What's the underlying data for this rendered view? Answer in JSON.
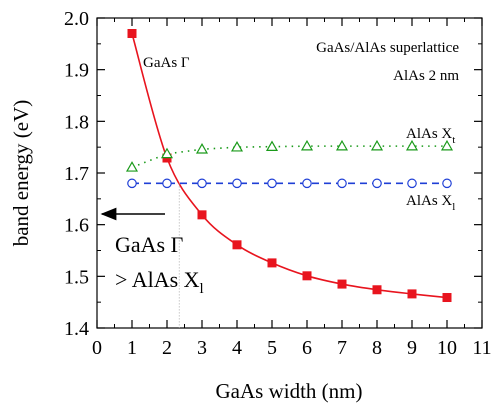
{
  "chart_data": {
    "type": "line",
    "xlabel": "GaAs width (nm)",
    "ylabel": "band energy (eV)",
    "xlim": [
      0,
      11
    ],
    "ylim": [
      1.4,
      2.0
    ],
    "x_ticks": [
      "0",
      "1",
      "2",
      "3",
      "4",
      "5",
      "6",
      "7",
      "8",
      "9",
      "10",
      "11"
    ],
    "y_ticks": [
      "1.4",
      "1.5",
      "1.6",
      "1.7",
      "1.8",
      "1.9",
      "2.0"
    ],
    "grid": false,
    "series": [
      {
        "name": "GaAs Γ",
        "label_main": "GaAs Γ",
        "color": "#e8141e",
        "marker": "square-filled",
        "line": "solid",
        "x": [
          1,
          2,
          3,
          4,
          5,
          6,
          7,
          8,
          9,
          10
        ],
        "y": [
          1.97,
          1.729,
          1.619,
          1.561,
          1.526,
          1.501,
          1.485,
          1.474,
          1.466,
          1.459
        ]
      },
      {
        "name": "AlAs Xt",
        "label_main": "AlAs X",
        "label_sub": "t",
        "color": "#1a9a1a",
        "marker": "triangle-open",
        "line": "dotted",
        "x": [
          1,
          2,
          3,
          4,
          5,
          6,
          7,
          8,
          9,
          10
        ],
        "y": [
          1.711,
          1.737,
          1.746,
          1.75,
          1.751,
          1.752,
          1.752,
          1.752,
          1.752,
          1.752
        ]
      },
      {
        "name": "AlAs Xl",
        "label_main": "AlAs X",
        "label_sub": "l",
        "color": "#1f3fd6",
        "marker": "circle-open",
        "line": "dashed",
        "x": [
          1,
          2,
          3,
          4,
          5,
          6,
          7,
          8,
          9,
          10
        ],
        "y": [
          1.68,
          1.68,
          1.68,
          1.68,
          1.68,
          1.68,
          1.68,
          1.68,
          1.68,
          1.68
        ]
      }
    ],
    "annotations": {
      "title_line1": "GaAs/AlAs superlattice",
      "title_line2": "AlAs 2 nm",
      "crossing_line1": "GaAs Γ",
      "crossing_line2_main": "> AlAs X",
      "crossing_line2_sub": "l",
      "crossing_x": 2.35
    }
  }
}
